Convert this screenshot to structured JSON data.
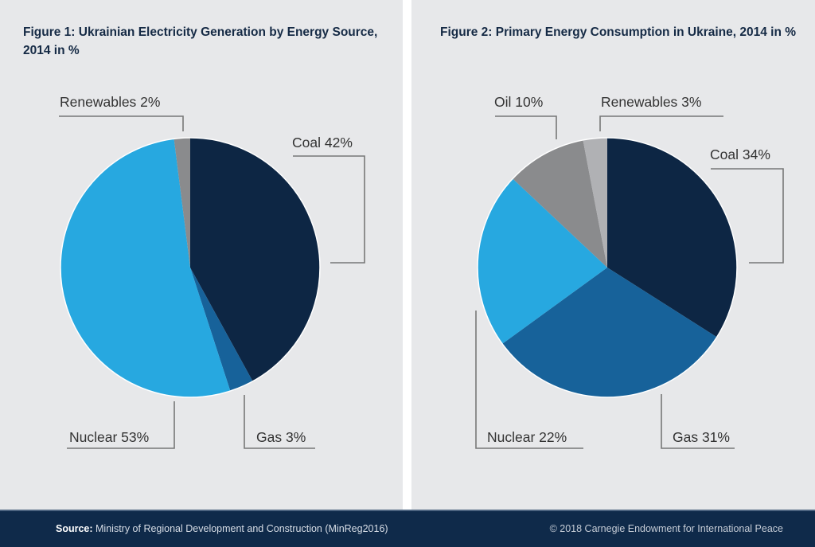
{
  "chart_data": [
    {
      "type": "pie",
      "title": "Figure 1:  Ukrainian Electricity Generation by Energy Source, 2014 in %",
      "start": "12 o'clock, clockwise",
      "slices": [
        {
          "name": "Coal",
          "value": 42,
          "label": "Coal 42%",
          "color": "#0d2644"
        },
        {
          "name": "Gas",
          "value": 3,
          "label": "Gas 3%",
          "color": "#17629a"
        },
        {
          "name": "Nuclear",
          "value": 53,
          "label": "Nuclear 53%",
          "color": "#27a8e0"
        },
        {
          "name": "Renewables",
          "value": 2,
          "label": "Renewables 2%",
          "color": "#8a8b8d"
        }
      ]
    },
    {
      "type": "pie",
      "title": "Figure 2:  Primary Energy Consumption in Ukraine, 2014 in %",
      "start": "12 o'clock, clockwise",
      "slices": [
        {
          "name": "Coal",
          "value": 34,
          "label": "Coal 34%",
          "color": "#0d2644"
        },
        {
          "name": "Gas",
          "value": 31,
          "label": "Gas 31%",
          "color": "#17629a"
        },
        {
          "name": "Nuclear",
          "value": 22,
          "label": "Nuclear 22%",
          "color": "#27a8e0"
        },
        {
          "name": "Oil",
          "value": 10,
          "label": "Oil 10%",
          "color": "#8a8b8d"
        },
        {
          "name": "Renewables",
          "value": 3,
          "label": "Renewables 3%",
          "color": "#b0b1b4"
        }
      ]
    }
  ],
  "footer": {
    "source_label": "Source:",
    "source_text": " Ministry of Regional Development and Construction (MinReg2016)",
    "copyright": "© 2018 Carnegie Endowment for International Peace"
  }
}
